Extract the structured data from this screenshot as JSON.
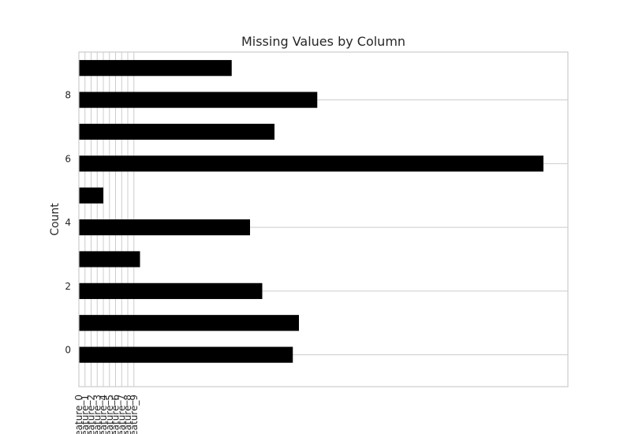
{
  "chart_data": {
    "type": "bar",
    "orientation": "horizontal",
    "title": "Missing Values by Column",
    "xlabel": "",
    "ylabel": "Count",
    "y_positions": [
      0,
      1,
      2,
      3,
      4,
      5,
      6,
      7,
      8,
      9
    ],
    "values": [
      35,
      36,
      30,
      10,
      28,
      4,
      76,
      32,
      39,
      25
    ],
    "xlim": [
      0,
      80
    ],
    "ylim": [
      -1,
      9.5
    ],
    "y_ticks": [
      "0",
      "2",
      "4",
      "6",
      "8"
    ],
    "x_tick_labels": [
      "feature_0",
      "feature_1",
      "feature_2",
      "feature_3",
      "feature_4",
      "feature_5",
      "feature_6",
      "feature_7",
      "feature_8",
      "feature_9"
    ],
    "grid": true,
    "bar_color": "#000000",
    "grid_color": "#cccccc"
  }
}
